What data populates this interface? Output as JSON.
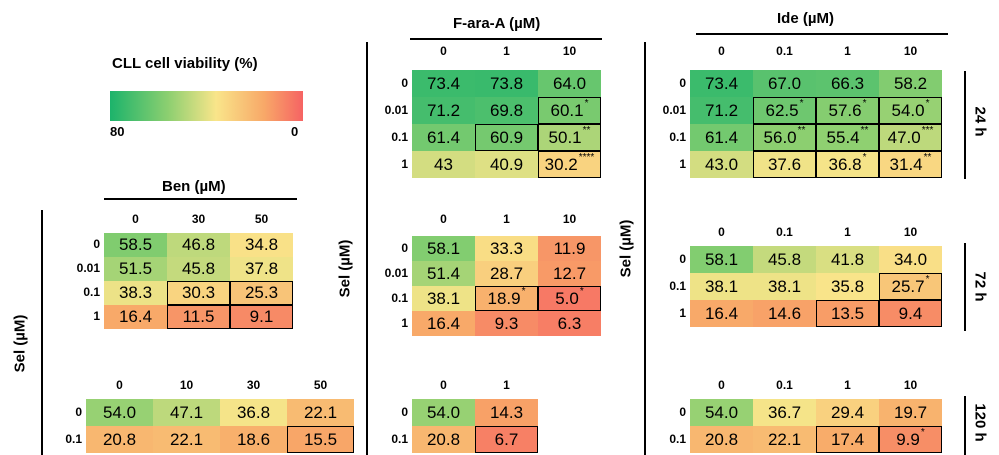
{
  "legend": {
    "title": "CLL cell viability (%)",
    "max_label": "80",
    "min_label": "0",
    "color_max": "#1cb36b",
    "color_mid": "#f9e58a",
    "color_min": "#f66363"
  },
  "titles": {
    "ben": "Ben (µM)",
    "fara": "F-ara-A (µM)",
    "ide": "Ide (µM)",
    "sel": "Sel (µM)"
  },
  "time_labels": [
    "24 h",
    "72 h",
    "120 h"
  ],
  "chart_data": [
    {
      "type": "heatmap",
      "id": "fara_24h",
      "col_header": [
        "0",
        "1",
        "10"
      ],
      "row_header": [
        "0",
        "0.01",
        "0.1",
        "1"
      ],
      "values": [
        [
          "73.4",
          "73.8",
          "64.0"
        ],
        [
          "71.2",
          "69.8",
          "60.1"
        ],
        [
          "61.4",
          "60.9",
          "50.1"
        ],
        [
          "43",
          "40.9",
          "30.2"
        ]
      ],
      "sig": [
        [
          "",
          "",
          ""
        ],
        [
          "",
          "",
          "*"
        ],
        [
          "",
          "",
          "**"
        ],
        [
          "",
          "",
          "****"
        ]
      ],
      "boxed": [
        [
          0,
          0,
          0
        ],
        [
          0,
          0,
          1
        ],
        [
          0,
          1,
          1
        ],
        [
          0,
          0,
          1
        ]
      ]
    },
    {
      "type": "heatmap",
      "id": "ide_24h",
      "col_header": [
        "0",
        "0.1",
        "1",
        "10"
      ],
      "row_header": [
        "0",
        "0.01",
        "0.1",
        "1"
      ],
      "values": [
        [
          "73.4",
          "67.0",
          "66.3",
          "58.2"
        ],
        [
          "71.2",
          "62.5",
          "57.6",
          "54.0"
        ],
        [
          "61.4",
          "56.0",
          "55.4",
          "47.0"
        ],
        [
          "43.0",
          "37.6",
          "36.8",
          "31.4"
        ]
      ],
      "sig": [
        [
          "",
          "",
          "",
          ""
        ],
        [
          "",
          "*",
          "*",
          "*"
        ],
        [
          "",
          "**",
          "**",
          "***"
        ],
        [
          "",
          "",
          "*",
          "**"
        ]
      ],
      "boxed": [
        [
          0,
          0,
          0,
          0
        ],
        [
          0,
          1,
          1,
          1
        ],
        [
          0,
          1,
          1,
          1
        ],
        [
          0,
          1,
          1,
          1
        ]
      ]
    },
    {
      "type": "heatmap",
      "id": "ben_72h",
      "col_header": [
        "0",
        "30",
        "50"
      ],
      "row_header": [
        "0",
        "0.01",
        "0.1",
        "1"
      ],
      "values": [
        [
          "58.5",
          "46.8",
          "34.8"
        ],
        [
          "51.5",
          "45.8",
          "37.8"
        ],
        [
          "38.3",
          "30.3",
          "25.3"
        ],
        [
          "16.4",
          "11.5",
          "9.1"
        ]
      ],
      "sig": [
        [
          "",
          "",
          ""
        ],
        [
          "",
          "",
          ""
        ],
        [
          "",
          "",
          ""
        ],
        [
          "",
          "",
          ""
        ]
      ],
      "boxed": [
        [
          0,
          0,
          0
        ],
        [
          0,
          0,
          0
        ],
        [
          0,
          1,
          1
        ],
        [
          0,
          1,
          1
        ]
      ]
    },
    {
      "type": "heatmap",
      "id": "fara_72h",
      "col_header": [
        "0",
        "1",
        "10"
      ],
      "row_header": [
        "0",
        "0.01",
        "0.1",
        "1"
      ],
      "values": [
        [
          "58.1",
          "33.3",
          "11.9"
        ],
        [
          "51.4",
          "28.7",
          "12.7"
        ],
        [
          "38.1",
          "18.9",
          "5.0"
        ],
        [
          "16.4",
          "9.3",
          "6.3"
        ]
      ],
      "sig": [
        [
          "",
          "",
          ""
        ],
        [
          "",
          "",
          ""
        ],
        [
          "",
          "*",
          "*"
        ],
        [
          "",
          "",
          ""
        ]
      ],
      "boxed": [
        [
          0,
          0,
          0
        ],
        [
          0,
          0,
          0
        ],
        [
          0,
          1,
          1
        ],
        [
          0,
          0,
          0
        ]
      ]
    },
    {
      "type": "heatmap",
      "id": "ide_72h",
      "col_header": [
        "0",
        "0.1",
        "1",
        "10"
      ],
      "row_header": [
        "0",
        "0.1",
        "1"
      ],
      "values": [
        [
          "58.1",
          "45.8",
          "41.8",
          "34.0"
        ],
        [
          "38.1",
          "38.1",
          "35.8",
          "25.7"
        ],
        [
          "16.4",
          "14.6",
          "13.5",
          "9.4"
        ]
      ],
      "sig": [
        [
          "",
          "",
          "",
          ""
        ],
        [
          "",
          "",
          "",
          "*"
        ],
        [
          "",
          "",
          "",
          ""
        ]
      ],
      "boxed": [
        [
          0,
          0,
          0,
          0
        ],
        [
          0,
          0,
          0,
          1
        ],
        [
          0,
          0,
          1,
          1
        ]
      ]
    },
    {
      "type": "heatmap",
      "id": "ben_120h",
      "col_header": [
        "0",
        "10",
        "30",
        "50"
      ],
      "row_header": [
        "0",
        "0.1"
      ],
      "values": [
        [
          "54.0",
          "47.1",
          "36.8",
          "22.1"
        ],
        [
          "20.8",
          "22.1",
          "18.6",
          "15.5"
        ]
      ],
      "sig": [
        [
          "",
          "",
          "",
          ""
        ],
        [
          "",
          "",
          "",
          ""
        ]
      ],
      "boxed": [
        [
          0,
          0,
          0,
          0
        ],
        [
          0,
          0,
          0,
          1
        ]
      ]
    },
    {
      "type": "heatmap",
      "id": "fara_120h",
      "col_header": [
        "0",
        "1"
      ],
      "row_header": [
        "0",
        "0.1"
      ],
      "values": [
        [
          "54.0",
          "14.3"
        ],
        [
          "20.8",
          "6.7"
        ]
      ],
      "sig": [
        [
          "",
          ""
        ],
        [
          "",
          ""
        ]
      ],
      "boxed": [
        [
          0,
          0
        ],
        [
          0,
          1
        ]
      ]
    },
    {
      "type": "heatmap",
      "id": "ide_120h",
      "col_header": [
        "0",
        "0.1",
        "1",
        "10"
      ],
      "row_header": [
        "0",
        "0.1"
      ],
      "values": [
        [
          "54.0",
          "36.7",
          "29.4",
          "19.7"
        ],
        [
          "20.8",
          "22.1",
          "17.4",
          "9.9"
        ]
      ],
      "sig": [
        [
          "",
          "",
          "",
          ""
        ],
        [
          "",
          "",
          "",
          "*"
        ]
      ],
      "boxed": [
        [
          0,
          0,
          0,
          0
        ],
        [
          0,
          0,
          1,
          1
        ]
      ]
    }
  ]
}
